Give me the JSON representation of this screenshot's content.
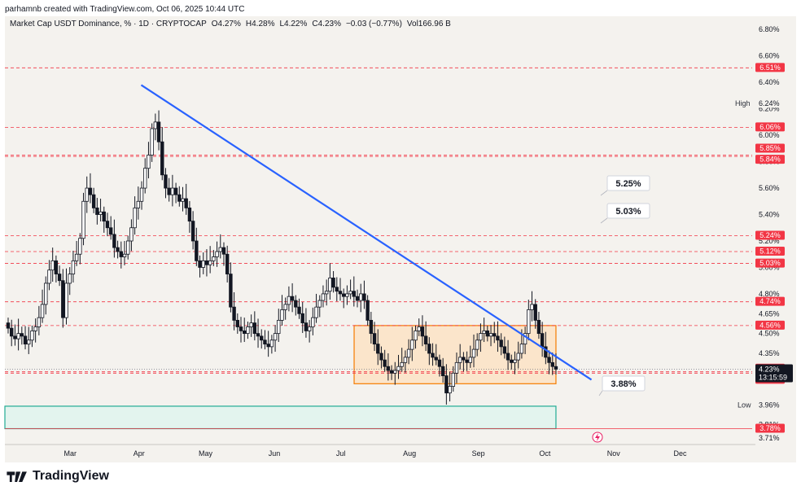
{
  "header": {
    "credit": "parhamnb created with TradingView.com, Oct 06, 2025 10:44 UTC"
  },
  "legend": {
    "symbol": "Market Cap USDT Dominance, % · 1D · CRYPTOCAP",
    "open": "O4.27%",
    "high": "H4.28%",
    "low": "L4.22%",
    "close": "C4.23%",
    "change": "−0.03 (−0.77%)",
    "volume": "Vol166.96 B"
  },
  "footer": {
    "brand": "TradingView"
  },
  "colors": {
    "red": "#f23645",
    "blue": "#2962ff",
    "box_fill": "#fbe3c4",
    "box_border": "#f57c00",
    "green_border": "#22ab94",
    "green_fill": "#e3f4ee"
  },
  "chart_data": {
    "type": "candlestick",
    "x_ticks": [
      "Mar",
      "Apr",
      "May",
      "Jun",
      "Jul",
      "Aug",
      "Sep",
      "Oct",
      "Nov",
      "Dec"
    ],
    "y_ticks": [
      "6.80%",
      "6.60%",
      "6.40%",
      "6.20%",
      "6.00%",
      "5.80%",
      "5.60%",
      "5.40%",
      "5.20%",
      "5.00%",
      "4.80%",
      "4.65%",
      "4.50%",
      "4.35%",
      "3.95%",
      "3.81%",
      "3.71%"
    ],
    "ylim": [
      3.66,
      6.9
    ],
    "horizontal_levels": [
      {
        "value": 6.51,
        "label": "6.51%"
      },
      {
        "value": 6.06,
        "label": "6.06%"
      },
      {
        "value": 5.85,
        "label": "5.85%"
      },
      {
        "value": 5.84,
        "label": "5.84%"
      },
      {
        "value": 5.24,
        "label": "5.24%"
      },
      {
        "value": 5.12,
        "label": "5.12%"
      },
      {
        "value": 5.03,
        "label": "5.03%"
      },
      {
        "value": 4.74,
        "label": "4.74%"
      },
      {
        "value": 4.56,
        "label": "4.56%"
      },
      {
        "value": 4.21,
        "label": "4.21%"
      },
      {
        "value": 4.2,
        "label": "4.20%"
      },
      {
        "value": 3.78,
        "label": "3.78%"
      }
    ],
    "last_price": {
      "value": 4.23,
      "label": "4.23%",
      "countdown": "13:15:59"
    },
    "high": {
      "label": "High",
      "value": "6.24%"
    },
    "low": {
      "label": "Low",
      "value": "3.96%"
    },
    "annotations": [
      "5.25%",
      "5.03%",
      "3.88%"
    ],
    "trendline": {
      "from": {
        "date": "2025-04-02",
        "value": 6.38
      },
      "to": {
        "date": "2025-10-22",
        "value": 4.15
      }
    },
    "range_box": {
      "from_date": "2025-07-07",
      "to_date": "2025-10-06",
      "top": 4.56,
      "bottom": 4.12
    },
    "demand_zone": {
      "from_date": "2025-02-13",
      "to_date": "2025-10-06",
      "top": 3.95,
      "bottom": 3.78
    },
    "candles_close": [
      4.54,
      4.48,
      4.46,
      4.5,
      4.48,
      4.42,
      4.45,
      4.52,
      4.55,
      4.62,
      4.72,
      4.88,
      4.98,
      5.05,
      4.95,
      4.9,
      4.62,
      4.88,
      4.95,
      5.05,
      5.1,
      5.22,
      5.5,
      5.6,
      5.55,
      5.45,
      5.4,
      5.42,
      5.35,
      5.3,
      5.25,
      5.15,
      5.12,
      5.08,
      5.1,
      5.2,
      5.3,
      5.45,
      5.5,
      5.6,
      5.75,
      5.85,
      6.05,
      6.1,
      5.95,
      5.7,
      5.6,
      5.55,
      5.6,
      5.55,
      5.5,
      5.52,
      5.45,
      5.35,
      5.2,
      5.05,
      5.0,
      5.05,
      5.02,
      5.05,
      5.08,
      5.12,
      5.15,
      5.1,
      4.95,
      4.7,
      4.6,
      4.55,
      4.52,
      4.5,
      4.55,
      4.58,
      4.5,
      4.48,
      4.45,
      4.42,
      4.4,
      4.45,
      4.5,
      4.6,
      4.68,
      4.72,
      4.78,
      4.75,
      4.7,
      4.65,
      4.58,
      4.52,
      4.55,
      4.62,
      4.7,
      4.75,
      4.8,
      4.82,
      4.92,
      4.85,
      4.82,
      4.8,
      4.78,
      4.8,
      4.82,
      4.78,
      4.75,
      4.8,
      4.75,
      4.6,
      4.5,
      4.42,
      4.35,
      4.3,
      4.25,
      4.22,
      4.2,
      4.22,
      4.25,
      4.28,
      4.32,
      4.38,
      4.45,
      4.52,
      4.55,
      4.48,
      4.42,
      4.35,
      4.32,
      4.3,
      4.25,
      4.18,
      4.05,
      4.1,
      4.2,
      4.28,
      4.32,
      4.3,
      4.28,
      4.32,
      4.38,
      4.45,
      4.5,
      4.52,
      4.48,
      4.5,
      4.48,
      4.45,
      4.4,
      4.35,
      4.3,
      4.28,
      4.3,
      4.35,
      4.42,
      4.5,
      4.68,
      4.72,
      4.6,
      4.5,
      4.4,
      4.32,
      4.28,
      4.25,
      4.23
    ]
  }
}
